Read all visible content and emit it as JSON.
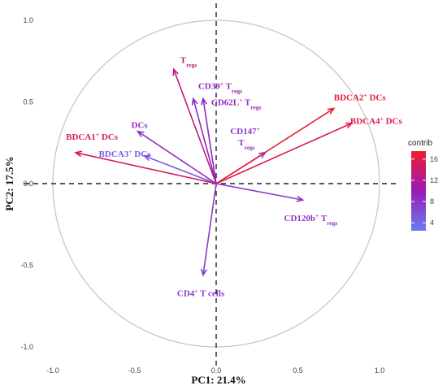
{
  "chart_data": {
    "type": "biplot",
    "xlabel": "PC1: 21.4%",
    "ylabel": "PC2: 17.5%",
    "xlim": [
      -1.0,
      1.0
    ],
    "ylim": [
      -1.0,
      1.0
    ],
    "x_ticks": [
      "-1.0",
      "-0.5",
      "0.0",
      "0.5",
      "1.0"
    ],
    "y_ticks": [
      "1.0",
      "0.5",
      "0.0",
      "-0.5",
      "-1.0"
    ],
    "unit_circle": true,
    "grid": false,
    "color_scale": {
      "title": "contrib",
      "ticks": [
        "16",
        "12",
        "8",
        "4"
      ],
      "min": 2.5,
      "max": 17.5,
      "low_color": "#6a7cf0",
      "mid_color": "#9a1ab8",
      "high_color": "#ee1c2e",
      "placement": "right"
    },
    "vectors": [
      {
        "label": "T",
        "sub": "regs",
        "x": -0.26,
        "y": 0.7,
        "contrib": 13
      },
      {
        "label": "CD39",
        "sup": "+",
        "label2": " T",
        "sub": "regs",
        "x": -0.14,
        "y": 0.52,
        "contrib": 9
      },
      {
        "label": "CD62L",
        "sup": "+",
        "label2": " T",
        "sub": "regs",
        "x": -0.08,
        "y": 0.52,
        "contrib": 9
      },
      {
        "label": "DCs",
        "x": -0.48,
        "y": 0.32,
        "contrib": 8.5
      },
      {
        "label": "BDCA3",
        "sup": "+",
        "label2": " DCs",
        "x": -0.44,
        "y": 0.17,
        "contrib": 5
      },
      {
        "label": "BDCA1",
        "sup": "+",
        "label2": " DCs",
        "x": -0.86,
        "y": 0.19,
        "contrib": 15
      },
      {
        "label": "CD147",
        "sup": "+",
        "line2": "T",
        "sub": "regs",
        "x": 0.3,
        "y": 0.19,
        "contrib": 8
      },
      {
        "label": "BDCA2",
        "sup": "+",
        "label2": " DCs",
        "x": 0.72,
        "y": 0.46,
        "contrib": 17
      },
      {
        "label": "BDCA4",
        "sup": "+",
        "label2": " DCs",
        "x": 0.83,
        "y": 0.37,
        "contrib": 16
      },
      {
        "label": "CD120b",
        "sup": "+",
        "label2": " T",
        "sub": "regs",
        "x": 0.53,
        "y": -0.1,
        "contrib": 8
      },
      {
        "label": "CD4",
        "sup": "+",
        "label2": " T cells",
        "x": -0.08,
        "y": -0.56,
        "contrib": 7.5
      }
    ]
  }
}
